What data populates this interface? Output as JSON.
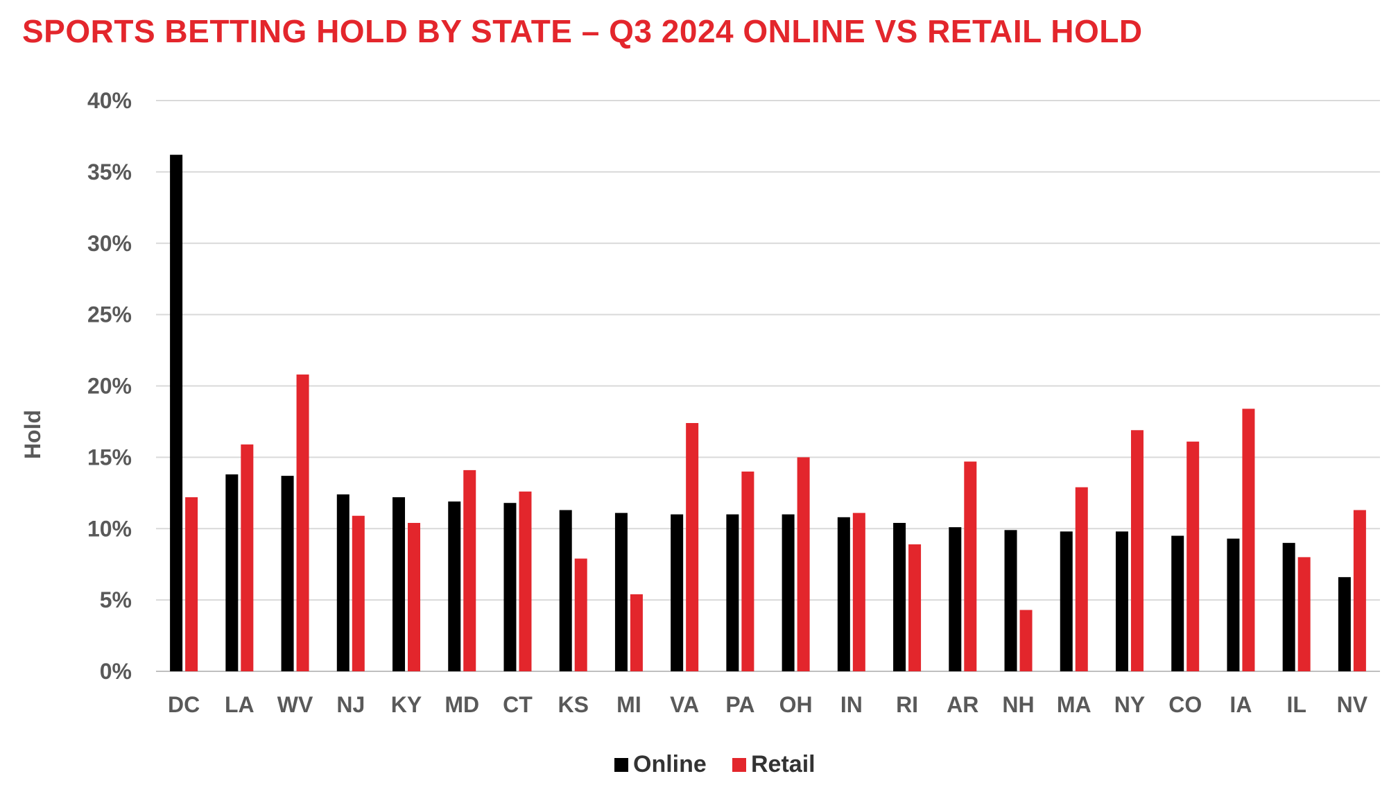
{
  "chart_data": {
    "type": "bar",
    "title": "SPORTS BETTING HOLD BY STATE – Q3 2024 ONLINE VS RETAIL HOLD",
    "ylabel": "Hold",
    "xlabel": "",
    "ylim": [
      0,
      40
    ],
    "y_ticks": [
      0,
      5,
      10,
      15,
      20,
      25,
      30,
      35,
      40
    ],
    "y_tick_format": "%",
    "grid": true,
    "legend_position": "bottom",
    "categories": [
      "DC",
      "LA",
      "WV",
      "NJ",
      "KY",
      "MD",
      "CT",
      "KS",
      "MI",
      "VA",
      "PA",
      "OH",
      "IN",
      "RI",
      "AR",
      "NH",
      "MA",
      "NY",
      "CO",
      "IA",
      "IL",
      "NV"
    ],
    "series": [
      {
        "name": "Online",
        "color": "#000000",
        "values": [
          36.2,
          13.8,
          13.7,
          12.4,
          12.2,
          11.9,
          11.8,
          11.3,
          11.1,
          11.0,
          11.0,
          11.0,
          10.8,
          10.4,
          10.1,
          9.9,
          9.8,
          9.8,
          9.5,
          9.3,
          9.0,
          6.6
        ]
      },
      {
        "name": "Retail",
        "color": "#e3262c",
        "values": [
          12.2,
          15.9,
          20.8,
          10.9,
          10.4,
          14.1,
          12.6,
          7.9,
          5.4,
          17.4,
          14.0,
          15.0,
          11.1,
          8.9,
          14.7,
          4.3,
          12.9,
          16.9,
          16.1,
          18.4,
          8.0,
          11.3
        ]
      }
    ]
  }
}
